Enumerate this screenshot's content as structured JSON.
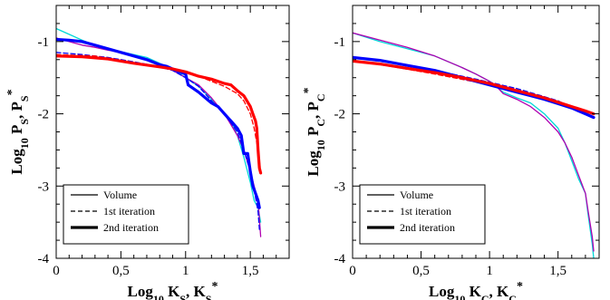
{
  "chart_data": [
    {
      "type": "line",
      "xlabel": {
        "base": "Log",
        "base_sub": "10",
        "var1": "K",
        "var1_sub": "S",
        "sep": ", ",
        "var2": "K",
        "var2_sub": "S",
        "var2_sup": "*"
      },
      "ylabel": {
        "base": "Log",
        "base_sub": "10",
        "var1": "P",
        "var1_sub": "S",
        "sep": ", ",
        "var2": "P",
        "var2_sub": "S",
        "var2_sup": "*"
      },
      "xlim": [
        0,
        1.8
      ],
      "ylim": [
        -4,
        -0.5
      ],
      "xticks": [
        {
          "v": 0,
          "t": "0"
        },
        {
          "v": 0.5,
          "t": "0,5"
        },
        {
          "v": 1,
          "t": "1"
        },
        {
          "v": 1.5,
          "t": "1,5"
        }
      ],
      "yticks": [
        {
          "v": -4,
          "t": "-4"
        },
        {
          "v": -3,
          "t": "-3"
        },
        {
          "v": -2,
          "t": "-2"
        },
        {
          "v": -1,
          "t": "-1"
        }
      ],
      "legend": {
        "placement": "bottom-left",
        "entries": [
          "Volume",
          "1st iteration",
          "2nd iteration"
        ]
      },
      "series": [
        {
          "color": "#00d8d8",
          "style": "thin",
          "points": [
            [
              0,
              -0.82
            ],
            [
              0.1,
              -0.9
            ],
            [
              0.2,
              -0.98
            ],
            [
              0.3,
              -1.05
            ],
            [
              0.45,
              -1.12
            ],
            [
              0.6,
              -1.18
            ],
            [
              0.7,
              -1.22
            ],
            [
              0.8,
              -1.3
            ],
            [
              0.9,
              -1.38
            ],
            [
              1.0,
              -1.5
            ],
            [
              1.1,
              -1.62
            ],
            [
              1.2,
              -1.8
            ],
            [
              1.3,
              -2.0
            ],
            [
              1.35,
              -2.1
            ],
            [
              1.4,
              -2.3
            ],
            [
              1.45,
              -2.6
            ],
            [
              1.5,
              -2.95
            ],
            [
              1.53,
              -3.2
            ],
            [
              1.56,
              -3.3
            ],
            [
              1.58,
              -3.5
            ]
          ]
        },
        {
          "color": "#b000b0",
          "style": "thin",
          "points": [
            [
              0,
              -0.95
            ],
            [
              0.1,
              -1.0
            ],
            [
              0.2,
              -1.05
            ],
            [
              0.3,
              -1.08
            ],
            [
              0.4,
              -1.12
            ],
            [
              0.5,
              -1.15
            ],
            [
              0.6,
              -1.2
            ],
            [
              0.7,
              -1.25
            ],
            [
              0.8,
              -1.33
            ],
            [
              0.9,
              -1.4
            ],
            [
              1.0,
              -1.5
            ],
            [
              1.1,
              -1.6
            ],
            [
              1.2,
              -1.78
            ],
            [
              1.3,
              -2.0
            ],
            [
              1.35,
              -2.15
            ],
            [
              1.4,
              -2.3
            ],
            [
              1.45,
              -2.5
            ],
            [
              1.5,
              -2.8
            ],
            [
              1.53,
              -3.0
            ],
            [
              1.56,
              -3.2
            ],
            [
              1.58,
              -3.7
            ]
          ]
        },
        {
          "color": "#0000ff",
          "style": "dashed",
          "points": [
            [
              0,
              -1.15
            ],
            [
              0.2,
              -1.18
            ],
            [
              0.4,
              -1.22
            ],
            [
              0.6,
              -1.28
            ],
            [
              0.8,
              -1.35
            ],
            [
              0.9,
              -1.4
            ],
            [
              1.0,
              -1.5
            ],
            [
              1.1,
              -1.62
            ],
            [
              1.2,
              -1.82
            ],
            [
              1.3,
              -2.0
            ],
            [
              1.4,
              -2.25
            ],
            [
              1.45,
              -2.5
            ],
            [
              1.5,
              -2.8
            ],
            [
              1.53,
              -3.05
            ],
            [
              1.56,
              -3.35
            ],
            [
              1.57,
              -3.6
            ]
          ]
        },
        {
          "color": "#ff0000",
          "style": "dashed",
          "points": [
            [
              0,
              -1.18
            ],
            [
              0.3,
              -1.2
            ],
            [
              0.6,
              -1.3
            ],
            [
              0.9,
              -1.38
            ],
            [
              1.0,
              -1.42
            ],
            [
              1.1,
              -1.48
            ],
            [
              1.2,
              -1.55
            ],
            [
              1.3,
              -1.62
            ],
            [
              1.4,
              -1.72
            ],
            [
              1.45,
              -1.82
            ],
            [
              1.5,
              -2.0
            ],
            [
              1.53,
              -2.2
            ],
            [
              1.56,
              -2.5
            ],
            [
              1.58,
              -2.8
            ]
          ]
        },
        {
          "color": "#0000ff",
          "style": "thick",
          "points": [
            [
              0,
              -0.97
            ],
            [
              0.1,
              -0.98
            ],
            [
              0.2,
              -1.0
            ],
            [
              0.3,
              -1.05
            ],
            [
              0.4,
              -1.1
            ],
            [
              0.5,
              -1.15
            ],
            [
              0.6,
              -1.2
            ],
            [
              0.7,
              -1.25
            ],
            [
              0.8,
              -1.32
            ],
            [
              0.85,
              -1.34
            ],
            [
              0.9,
              -1.38
            ],
            [
              1.0,
              -1.45
            ],
            [
              1.02,
              -1.6
            ],
            [
              1.1,
              -1.7
            ],
            [
              1.2,
              -1.85
            ],
            [
              1.25,
              -1.9
            ],
            [
              1.3,
              -2.0
            ],
            [
              1.35,
              -2.1
            ],
            [
              1.4,
              -2.2
            ],
            [
              1.43,
              -2.3
            ],
            [
              1.45,
              -2.55
            ],
            [
              1.48,
              -2.55
            ],
            [
              1.5,
              -2.8
            ],
            [
              1.52,
              -3.0
            ],
            [
              1.54,
              -3.1
            ],
            [
              1.56,
              -3.2
            ],
            [
              1.57,
              -3.3
            ]
          ]
        },
        {
          "color": "#ff0000",
          "style": "thick",
          "points": [
            [
              0,
              -1.2
            ],
            [
              0.2,
              -1.21
            ],
            [
              0.4,
              -1.24
            ],
            [
              0.6,
              -1.3
            ],
            [
              0.8,
              -1.35
            ],
            [
              0.9,
              -1.38
            ],
            [
              1.0,
              -1.42
            ],
            [
              1.1,
              -1.48
            ],
            [
              1.2,
              -1.52
            ],
            [
              1.3,
              -1.58
            ],
            [
              1.35,
              -1.6
            ],
            [
              1.4,
              -1.68
            ],
            [
              1.45,
              -1.75
            ],
            [
              1.5,
              -1.9
            ],
            [
              1.52,
              -2.0
            ],
            [
              1.54,
              -2.1
            ],
            [
              1.55,
              -2.2
            ],
            [
              1.56,
              -2.5
            ],
            [
              1.57,
              -2.75
            ],
            [
              1.58,
              -2.82
            ]
          ]
        }
      ]
    },
    {
      "type": "line",
      "xlabel": {
        "base": "Log",
        "base_sub": "10",
        "var1": "K",
        "var1_sub": "C",
        "sep": ", ",
        "var2": "K",
        "var2_sub": "C",
        "var2_sup": "*"
      },
      "ylabel": {
        "base": "Log",
        "base_sub": "10",
        "var1": "P",
        "var1_sub": "C",
        "sep": ", ",
        "var2": "P",
        "var2_sub": "C",
        "var2_sup": "*"
      },
      "xlim": [
        0,
        1.8
      ],
      "ylim": [
        -4,
        -0.5
      ],
      "xticks": [
        {
          "v": 0,
          "t": "0"
        },
        {
          "v": 0.5,
          "t": "0,5"
        },
        {
          "v": 1,
          "t": "1"
        },
        {
          "v": 1.5,
          "t": "1,5"
        }
      ],
      "yticks": [
        {
          "v": -4,
          "t": "-4"
        },
        {
          "v": -3,
          "t": "-3"
        },
        {
          "v": -2,
          "t": "-2"
        },
        {
          "v": -1,
          "t": "-1"
        }
      ],
      "legend": {
        "placement": "bottom-left",
        "entries": [
          "Volume",
          "1st iteration",
          "2nd iteration"
        ]
      },
      "series": [
        {
          "color": "#00d8d8",
          "style": "thin",
          "points": [
            [
              0,
              -0.88
            ],
            [
              0.2,
              -1.0
            ],
            [
              0.4,
              -1.1
            ],
            [
              0.6,
              -1.2
            ],
            [
              0.7,
              -1.28
            ],
            [
              0.8,
              -1.36
            ],
            [
              0.9,
              -1.45
            ],
            [
              1.0,
              -1.55
            ],
            [
              1.1,
              -1.7
            ],
            [
              1.2,
              -1.78
            ],
            [
              1.3,
              -1.85
            ],
            [
              1.4,
              -2.0
            ],
            [
              1.5,
              -2.2
            ],
            [
              1.55,
              -2.4
            ],
            [
              1.6,
              -2.65
            ],
            [
              1.65,
              -2.9
            ],
            [
              1.7,
              -3.1
            ],
            [
              1.72,
              -3.4
            ],
            [
              1.75,
              -3.8
            ],
            [
              1.76,
              -4.0
            ]
          ]
        },
        {
          "color": "#b000b0",
          "style": "thin",
          "points": [
            [
              0,
              -0.88
            ],
            [
              0.2,
              -0.98
            ],
            [
              0.4,
              -1.08
            ],
            [
              0.6,
              -1.2
            ],
            [
              0.7,
              -1.28
            ],
            [
              0.8,
              -1.36
            ],
            [
              0.9,
              -1.45
            ],
            [
              1.0,
              -1.55
            ],
            [
              1.05,
              -1.62
            ],
            [
              1.1,
              -1.72
            ],
            [
              1.2,
              -1.8
            ],
            [
              1.3,
              -1.9
            ],
            [
              1.4,
              -2.05
            ],
            [
              1.5,
              -2.25
            ],
            [
              1.55,
              -2.4
            ],
            [
              1.6,
              -2.6
            ],
            [
              1.65,
              -2.85
            ],
            [
              1.7,
              -3.1
            ],
            [
              1.72,
              -3.35
            ],
            [
              1.75,
              -3.7
            ],
            [
              1.76,
              -3.9
            ]
          ]
        },
        {
          "color": "#0000ff",
          "style": "dashed",
          "points": [
            [
              0,
              -1.22
            ],
            [
              0.3,
              -1.3
            ],
            [
              0.6,
              -1.4
            ],
            [
              0.9,
              -1.52
            ],
            [
              1.2,
              -1.65
            ],
            [
              1.5,
              -1.82
            ],
            [
              1.75,
              -2.05
            ]
          ]
        },
        {
          "color": "#ff0000",
          "style": "dashed",
          "points": [
            [
              0,
              -1.26
            ],
            [
              0.3,
              -1.35
            ],
            [
              0.6,
              -1.45
            ],
            [
              0.9,
              -1.56
            ],
            [
              1.2,
              -1.68
            ],
            [
              1.5,
              -1.85
            ],
            [
              1.75,
              -2.0
            ]
          ]
        },
        {
          "color": "#0000ff",
          "style": "thick",
          "points": [
            [
              0,
              -1.22
            ],
            [
              0.2,
              -1.26
            ],
            [
              0.4,
              -1.33
            ],
            [
              0.6,
              -1.4
            ],
            [
              0.8,
              -1.5
            ],
            [
              0.9,
              -1.55
            ],
            [
              1.0,
              -1.6
            ],
            [
              1.1,
              -1.65
            ],
            [
              1.2,
              -1.7
            ],
            [
              1.3,
              -1.75
            ],
            [
              1.4,
              -1.8
            ],
            [
              1.5,
              -1.86
            ],
            [
              1.6,
              -1.92
            ],
            [
              1.7,
              -2.0
            ],
            [
              1.76,
              -2.05
            ]
          ]
        },
        {
          "color": "#ff0000",
          "style": "thick",
          "points": [
            [
              0,
              -1.27
            ],
            [
              0.2,
              -1.31
            ],
            [
              0.4,
              -1.37
            ],
            [
              0.6,
              -1.43
            ],
            [
              0.8,
              -1.5
            ],
            [
              0.9,
              -1.54
            ],
            [
              1.0,
              -1.58
            ],
            [
              1.1,
              -1.63
            ],
            [
              1.2,
              -1.68
            ],
            [
              1.3,
              -1.73
            ],
            [
              1.4,
              -1.78
            ],
            [
              1.5,
              -1.84
            ],
            [
              1.6,
              -1.9
            ],
            [
              1.7,
              -1.96
            ],
            [
              1.76,
              -2.0
            ]
          ]
        }
      ]
    }
  ]
}
